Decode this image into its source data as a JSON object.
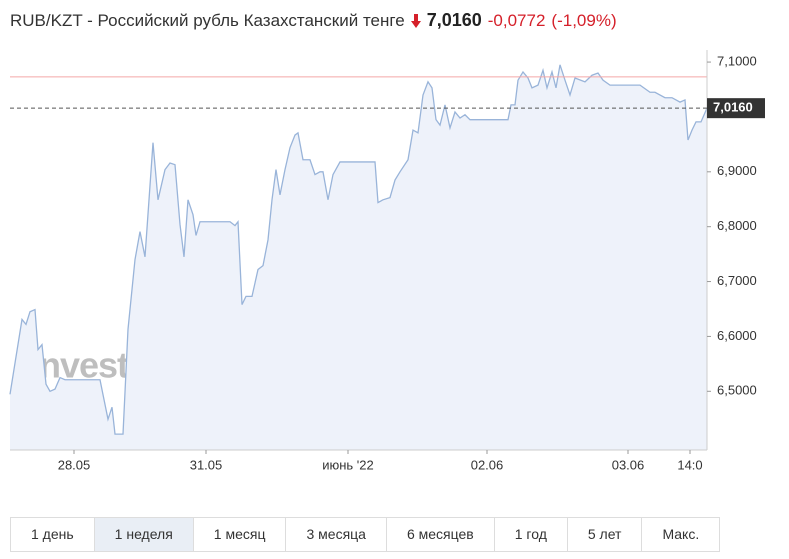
{
  "header": {
    "title": "RUB/KZT - Российский рубль Казахстанский тенге",
    "price": "7,0160",
    "change": "-0,0772",
    "change_pct": "(-1,09%)"
  },
  "chart_data": {
    "type": "area",
    "watermark": "Investing.com",
    "color": "#99b4d9",
    "fill": "#eef2fa",
    "x": [
      0,
      12,
      16,
      20,
      25,
      28,
      32,
      36,
      40,
      45,
      50,
      55,
      90,
      93,
      98,
      102,
      105,
      113,
      118,
      125,
      130,
      135,
      143,
      148,
      155,
      160,
      165,
      170,
      174,
      178,
      183,
      186,
      190,
      220,
      225,
      228,
      232,
      236,
      242,
      248,
      253,
      258,
      262,
      266,
      270,
      275,
      280,
      285,
      288,
      293,
      300,
      305,
      310,
      313,
      318,
      323,
      330,
      365,
      368,
      373,
      380,
      385,
      390,
      398,
      403,
      408,
      413,
      418,
      422,
      426,
      430,
      435,
      440,
      445,
      450,
      455,
      460,
      470,
      498,
      501,
      505,
      508,
      513,
      518,
      522,
      528,
      533,
      537,
      542,
      546,
      550,
      555,
      560,
      565,
      575,
      582,
      588,
      593,
      600,
      630,
      640,
      645,
      655,
      662,
      670,
      675,
      678,
      682,
      686,
      691,
      697
    ],
    "series": [
      {
        "name": "RUB/KZT",
        "color": "#99b4d9",
        "values": [
          6.4945,
          6.631,
          6.622,
          6.645,
          6.649,
          6.576,
          6.585,
          6.513,
          6.5,
          6.504,
          6.525,
          6.521,
          6.521,
          6.494,
          6.449,
          6.471,
          6.422,
          6.422,
          6.613,
          6.74,
          6.791,
          6.745,
          6.953,
          6.849,
          6.904,
          6.916,
          6.913,
          6.804,
          6.745,
          6.849,
          6.822,
          6.784,
          6.809,
          6.809,
          6.802,
          6.809,
          6.658,
          6.673,
          6.673,
          6.722,
          6.729,
          6.776,
          6.849,
          6.904,
          6.858,
          6.904,
          6.944,
          6.967,
          6.971,
          6.922,
          6.922,
          6.895,
          6.9,
          6.9,
          6.849,
          6.895,
          6.918,
          6.918,
          6.844,
          6.849,
          6.853,
          6.885,
          6.9,
          6.922,
          6.976,
          6.971,
          7.04,
          7.064,
          7.053,
          6.995,
          6.985,
          7.022,
          6.98,
          7.009,
          6.998,
          7.004,
          6.995,
          6.995,
          6.995,
          7.022,
          7.022,
          7.067,
          7.082,
          7.071,
          7.053,
          7.058,
          7.085,
          7.053,
          7.082,
          7.053,
          7.095,
          7.067,
          7.04,
          7.071,
          7.064,
          7.076,
          7.08,
          7.067,
          7.058,
          7.058,
          7.045,
          7.045,
          7.035,
          7.035,
          7.027,
          7.031,
          6.958,
          6.976,
          6.991,
          6.991,
          7.016
        ]
      }
    ],
    "xlim": [
      0,
      697
    ],
    "xticks": [
      {
        "value": 64,
        "label": "28.05"
      },
      {
        "value": 196,
        "label": "31.05"
      },
      {
        "value": 338,
        "label": "июнь '22"
      },
      {
        "value": 477,
        "label": "02.06"
      },
      {
        "value": 618,
        "label": "03.06"
      },
      {
        "value": 680,
        "label": "14:0"
      }
    ],
    "ylim": [
      6.393,
      7.122
    ],
    "yticks": [
      {
        "value": 6.5,
        "label": "6,5000"
      },
      {
        "value": 6.6,
        "label": "6,6000"
      },
      {
        "value": 6.7,
        "label": "6,7000"
      },
      {
        "value": 6.8,
        "label": "6,8000"
      },
      {
        "value": 6.9,
        "label": "6,9000"
      },
      {
        "value": 7.1,
        "label": "7,1000"
      }
    ],
    "current_price": {
      "value": 7.016,
      "label": "7,0160"
    },
    "reference_line": {
      "value": 7.073,
      "color": "#f4a6a6"
    },
    "grid": false
  },
  "periods": [
    "1 день",
    "1 неделя",
    "1 месяц",
    "3 месяца",
    "6 месяцев",
    "1 год",
    "5 лет",
    "Макс."
  ],
  "active_period": 1
}
